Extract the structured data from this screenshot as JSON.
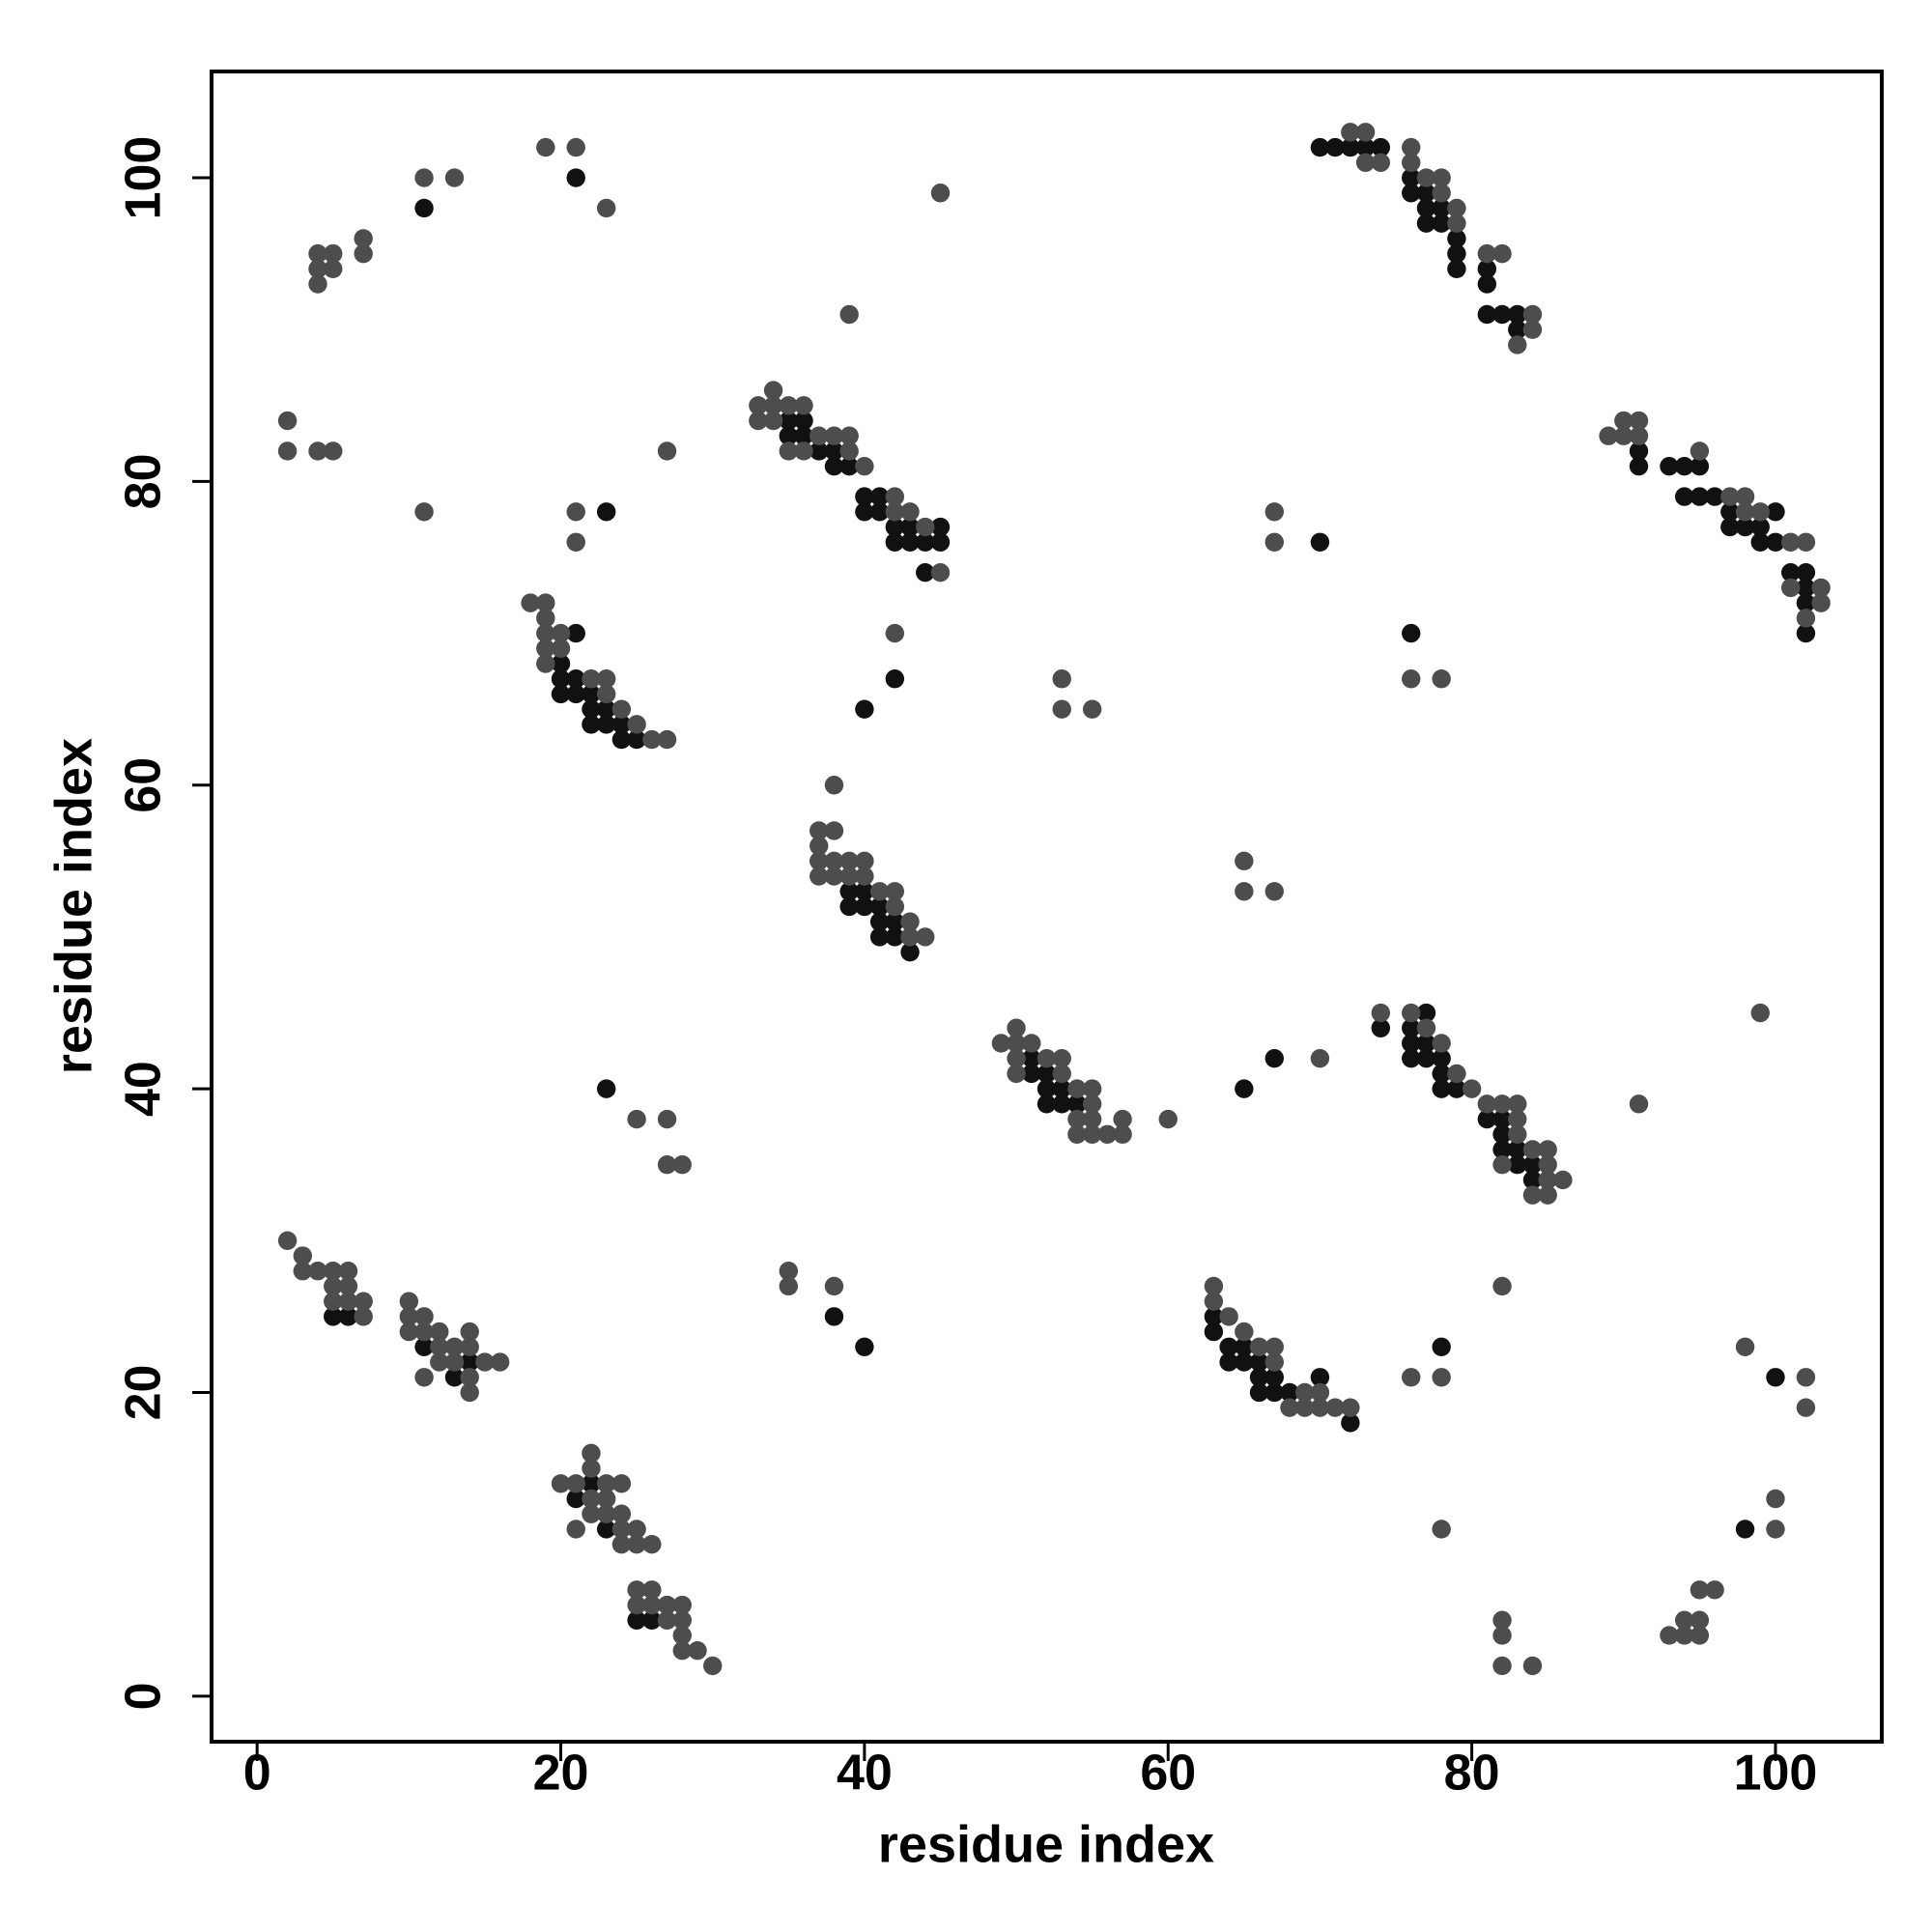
{
  "chart_data": {
    "type": "scatter",
    "x_label": "residue index",
    "y_label": "residue index",
    "xlim": [
      -3,
      107
    ],
    "ylim": [
      -3,
      107
    ],
    "xticks": [
      0,
      20,
      40,
      60,
      80,
      100
    ],
    "yticks": [
      0,
      20,
      40,
      60,
      80,
      100
    ],
    "series": [
      {
        "color": "#111111",
        "x": [
          70,
          71,
          72,
          73,
          74,
          76,
          76,
          77,
          77,
          77,
          78,
          78,
          79,
          79,
          79,
          81,
          81,
          81,
          82,
          83,
          83,
          35,
          35,
          36,
          36,
          37,
          38,
          38,
          39,
          40,
          40,
          41,
          41,
          42,
          42,
          43,
          43,
          44,
          45,
          45,
          44,
          20,
          20,
          20,
          21,
          21,
          21,
          22,
          22,
          22,
          23,
          23,
          24,
          24,
          25,
          39,
          39,
          40,
          40,
          41,
          41,
          41,
          42,
          42,
          43,
          51,
          51,
          52,
          52,
          52,
          53,
          53,
          54,
          91,
          91,
          93,
          94,
          94,
          95,
          95,
          96,
          97,
          97,
          98,
          99,
          99,
          100,
          100,
          101,
          102,
          102,
          102,
          102,
          74,
          76,
          76,
          76,
          77,
          77,
          77,
          78,
          78,
          78,
          79,
          81,
          82,
          82,
          82,
          83,
          83,
          84,
          84,
          63,
          63,
          64,
          64,
          65,
          65,
          66,
          66,
          66,
          67,
          67,
          68,
          70,
          72,
          11,
          13,
          14,
          5,
          6,
          21,
          22,
          23,
          25,
          26,
          21,
          23,
          40,
          42,
          76,
          70,
          67,
          65,
          23,
          40,
          78,
          100,
          98,
          11,
          38
        ],
        "values": [
          102,
          102,
          102,
          102,
          102,
          100,
          99,
          99,
          98,
          97,
          98,
          97,
          96,
          95,
          94,
          94,
          93,
          91,
          91,
          91,
          90,
          84,
          83,
          84,
          83,
          82,
          82,
          81,
          81,
          79,
          78,
          79,
          78,
          77,
          76,
          77,
          76,
          76,
          77,
          76,
          74,
          68,
          67,
          66,
          70,
          67,
          66,
          66,
          65,
          64,
          65,
          64,
          64,
          63,
          63,
          53,
          52,
          53,
          52,
          52,
          51,
          50,
          51,
          50,
          49,
          42,
          41,
          41,
          40,
          39,
          40,
          39,
          39,
          82,
          81,
          81,
          81,
          79,
          81,
          79,
          79,
          78,
          77,
          77,
          77,
          76,
          78,
          76,
          74,
          74,
          73,
          72,
          70,
          44,
          44,
          43,
          42,
          45,
          43,
          42,
          42,
          41,
          40,
          40,
          38,
          38,
          37,
          36,
          36,
          35,
          35,
          34,
          25,
          24,
          23,
          22,
          23,
          22,
          22,
          21,
          20,
          21,
          20,
          20,
          21,
          18,
          23,
          21,
          22,
          25,
          25,
          13,
          14,
          11,
          5,
          5,
          100,
          78,
          65,
          67,
          70,
          76,
          42,
          40,
          40,
          23,
          23,
          21,
          11,
          98,
          25
        ]
      },
      {
        "color": "#4d4d4d",
        "x": [
          4,
          4,
          4,
          5,
          5,
          7,
          7,
          11,
          13,
          19,
          21,
          23,
          45,
          39,
          2,
          2,
          4,
          5,
          27,
          11,
          21,
          21,
          33,
          33,
          34,
          34,
          34,
          35,
          35,
          36,
          36,
          37,
          38,
          39,
          39,
          40,
          42,
          42,
          43,
          44,
          45,
          18,
          19,
          19,
          19,
          19,
          19,
          20,
          20,
          22,
          23,
          23,
          24,
          25,
          26,
          27,
          42,
          53,
          53,
          55,
          38,
          37,
          37,
          37,
          37,
          38,
          38,
          38,
          39,
          39,
          40,
          40,
          41,
          42,
          42,
          43,
          43,
          44,
          49,
          50,
          50,
          50,
          50,
          51,
          52,
          53,
          53,
          54,
          54,
          54,
          55,
          55,
          55,
          55,
          56,
          57,
          57,
          60,
          25,
          27,
          27,
          28,
          65,
          65,
          67,
          70,
          67,
          67,
          72,
          73,
          73,
          74,
          76,
          76,
          77,
          78,
          78,
          79,
          79,
          81,
          82,
          83,
          84,
          84,
          89,
          90,
          90,
          91,
          91,
          95,
          97,
          98,
          98,
          99,
          101,
          101,
          102,
          102,
          103,
          103,
          76,
          78,
          99,
          91,
          74,
          76,
          77,
          78,
          79,
          80,
          81,
          82,
          82,
          83,
          83,
          83,
          84,
          84,
          85,
          85,
          85,
          85,
          86,
          2,
          3,
          3,
          4,
          5,
          5,
          5,
          6,
          6,
          6,
          7,
          7,
          10,
          10,
          10,
          11,
          11,
          11,
          12,
          12,
          12,
          13,
          13,
          14,
          14,
          14,
          14,
          15,
          16,
          35,
          35,
          38,
          20,
          21,
          21,
          22,
          22,
          22,
          22,
          23,
          23,
          23,
          24,
          24,
          24,
          24,
          25,
          25,
          26,
          25,
          25,
          26,
          26,
          27,
          27,
          28,
          28,
          28,
          28,
          29,
          30,
          63,
          63,
          64,
          65,
          66,
          67,
          67,
          68,
          69,
          69,
          70,
          70,
          71,
          72,
          76,
          78,
          82,
          78,
          98,
          102,
          102,
          100,
          100,
          95,
          96,
          93,
          94,
          94,
          95,
          95,
          82,
          82,
          82,
          84
        ],
        "values": [
          93,
          94,
          95,
          94,
          95,
          95,
          96,
          100,
          100,
          102,
          102,
          98,
          99,
          91,
          84,
          82,
          82,
          82,
          82,
          78,
          78,
          76,
          85,
          84,
          86,
          85,
          84,
          85,
          82,
          85,
          82,
          83,
          83,
          83,
          82,
          81,
          79,
          78,
          78,
          77,
          74,
          72,
          72,
          71,
          70,
          69,
          68,
          70,
          69,
          67,
          67,
          66,
          65,
          64,
          63,
          63,
          70,
          67,
          65,
          65,
          60,
          57,
          56,
          55,
          54,
          57,
          55,
          54,
          55,
          54,
          55,
          54,
          53,
          53,
          52,
          51,
          50,
          50,
          43,
          44,
          43,
          42,
          41,
          43,
          42,
          42,
          41,
          40,
          38,
          37,
          40,
          39,
          38,
          37,
          37,
          38,
          37,
          38,
          38,
          38,
          35,
          35,
          55,
          53,
          53,
          42,
          78,
          76,
          103,
          103,
          101,
          101,
          102,
          101,
          100,
          100,
          99,
          98,
          97,
          95,
          95,
          89,
          91,
          90,
          83,
          84,
          83,
          84,
          83,
          82,
          79,
          79,
          78,
          78,
          76,
          73,
          76,
          71,
          73,
          72,
          67,
          67,
          45,
          39,
          45,
          45,
          44,
          43,
          41,
          40,
          39,
          39,
          35,
          39,
          38,
          37,
          36,
          33,
          36,
          35,
          34,
          33,
          34,
          30,
          29,
          28,
          28,
          28,
          27,
          26,
          28,
          27,
          26,
          26,
          25,
          26,
          25,
          24,
          25,
          24,
          21,
          24,
          23,
          22,
          23,
          22,
          24,
          23,
          21,
          20,
          22,
          22,
          28,
          27,
          27,
          14,
          14,
          11,
          16,
          15,
          13,
          12,
          14,
          13,
          12,
          14,
          12,
          11,
          10,
          11,
          10,
          10,
          7,
          6,
          7,
          6,
          6,
          5,
          6,
          5,
          4,
          3,
          3,
          2,
          27,
          26,
          25,
          24,
          23,
          23,
          22,
          19,
          20,
          19,
          20,
          19,
          19,
          19,
          21,
          21,
          27,
          11,
          23,
          21,
          19,
          13,
          11,
          7,
          7,
          4,
          5,
          4,
          5,
          4,
          5,
          4,
          2,
          2
        ]
      }
    ]
  }
}
